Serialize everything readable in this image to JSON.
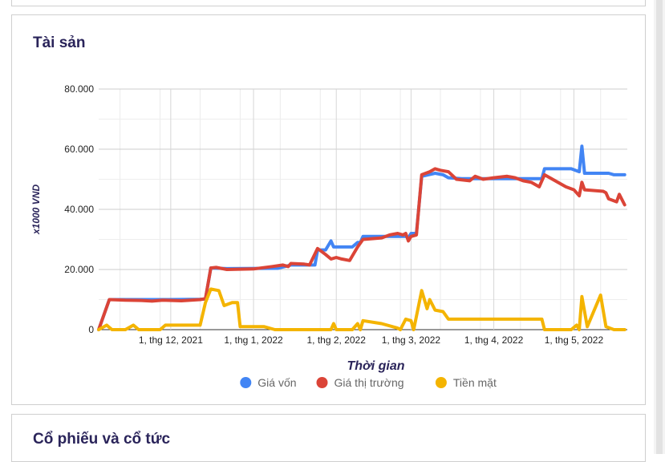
{
  "cards": {
    "assets_title": "Tài sản",
    "stocks_title": "Cổ phiếu và cổ tức"
  },
  "chart_data": {
    "type": "line",
    "title": "",
    "xlabel": "Thời gian",
    "ylabel": "x1000 VND",
    "ylim": [
      0,
      80000
    ],
    "yticks": [
      0,
      20000,
      40000,
      60000,
      80000
    ],
    "ytick_labels": [
      "0",
      "20.000",
      "40.000",
      "60.000",
      "80.000"
    ],
    "xlim": [
      "2021-11-04",
      "2022-05-21"
    ],
    "xticks": [
      "2021-12-01",
      "2022-01-01",
      "2022-02-01",
      "2022-03-01",
      "2022-04-01",
      "2022-05-01"
    ],
    "xtick_labels": [
      "1, thg 12, 2021",
      "1, thg 1, 2022",
      "1, thg 2, 2022",
      "1, thg 3, 2022",
      "1, thg 4, 2022",
      "1, thg 5, 2022"
    ],
    "grid": true,
    "legend_position": "bottom",
    "series": [
      {
        "name": "Giá vốn",
        "color": "#4285f4",
        "points": [
          [
            "2021-11-04",
            0
          ],
          [
            "2021-11-08",
            10000
          ],
          [
            "2021-11-20",
            10000
          ],
          [
            "2021-11-30",
            10000
          ],
          [
            "2021-12-12",
            10100
          ],
          [
            "2021-12-14",
            10200
          ],
          [
            "2021-12-16",
            20500
          ],
          [
            "2021-12-22",
            20300
          ],
          [
            "2022-01-10",
            20400
          ],
          [
            "2022-01-15",
            21500
          ],
          [
            "2022-01-24",
            21500
          ],
          [
            "2022-01-25",
            26500
          ],
          [
            "2022-01-28",
            26500
          ],
          [
            "2022-01-30",
            29500
          ],
          [
            "2022-01-31",
            27500
          ],
          [
            "2022-02-07",
            27500
          ],
          [
            "2022-02-09",
            29000
          ],
          [
            "2022-02-10",
            29000
          ],
          [
            "2022-02-11",
            31000
          ],
          [
            "2022-02-27",
            31000
          ],
          [
            "2022-02-28",
            30500
          ],
          [
            "2022-03-01",
            32000
          ],
          [
            "2022-03-03",
            32000
          ],
          [
            "2022-03-05",
            51000
          ],
          [
            "2022-03-10",
            52000
          ],
          [
            "2022-03-13",
            51500
          ],
          [
            "2022-03-15",
            50500
          ],
          [
            "2022-03-20",
            50200
          ],
          [
            "2022-04-05",
            50200
          ],
          [
            "2022-04-15",
            50200
          ],
          [
            "2022-04-19",
            50200
          ],
          [
            "2022-04-20",
            53500
          ],
          [
            "2022-04-30",
            53500
          ],
          [
            "2022-05-03",
            52500
          ],
          [
            "2022-05-04",
            61000
          ],
          [
            "2022-05-05",
            52000
          ],
          [
            "2022-05-14",
            52000
          ],
          [
            "2022-05-16",
            51500
          ],
          [
            "2022-05-20",
            51500
          ]
        ]
      },
      {
        "name": "Giá thị trường",
        "color": "#db4437",
        "points": [
          [
            "2021-11-04",
            0
          ],
          [
            "2021-11-08",
            10000
          ],
          [
            "2021-11-14",
            9800
          ],
          [
            "2021-11-20",
            9700
          ],
          [
            "2021-11-24",
            9500
          ],
          [
            "2021-11-28",
            9800
          ],
          [
            "2021-12-05",
            9600
          ],
          [
            "2021-12-12",
            10000
          ],
          [
            "2021-12-14",
            10300
          ],
          [
            "2021-12-16",
            20500
          ],
          [
            "2021-12-18",
            20700
          ],
          [
            "2021-12-22",
            20000
          ],
          [
            "2022-01-01",
            20200
          ],
          [
            "2022-01-08",
            21000
          ],
          [
            "2022-01-12",
            21500
          ],
          [
            "2022-01-14",
            21000
          ],
          [
            "2022-01-15",
            22000
          ],
          [
            "2022-01-20",
            21800
          ],
          [
            "2022-01-22",
            21500
          ],
          [
            "2022-01-25",
            27000
          ],
          [
            "2022-01-28",
            25000
          ],
          [
            "2022-01-30",
            23500
          ],
          [
            "2022-02-01",
            24000
          ],
          [
            "2022-02-03",
            23500
          ],
          [
            "2022-02-06",
            23000
          ],
          [
            "2022-02-09",
            27500
          ],
          [
            "2022-02-11",
            30000
          ],
          [
            "2022-02-18",
            30500
          ],
          [
            "2022-02-21",
            31500
          ],
          [
            "2022-02-24",
            32000
          ],
          [
            "2022-02-26",
            31500
          ],
          [
            "2022-02-27",
            32000
          ],
          [
            "2022-02-28",
            29500
          ],
          [
            "2022-03-01",
            31000
          ],
          [
            "2022-03-03",
            31500
          ],
          [
            "2022-03-05",
            51500
          ],
          [
            "2022-03-08",
            52500
          ],
          [
            "2022-03-10",
            53500
          ],
          [
            "2022-03-12",
            53000
          ],
          [
            "2022-03-15",
            52500
          ],
          [
            "2022-03-18",
            50000
          ],
          [
            "2022-03-23",
            49500
          ],
          [
            "2022-03-25",
            51000
          ],
          [
            "2022-03-28",
            50000
          ],
          [
            "2022-04-01",
            50500
          ],
          [
            "2022-04-04",
            50800
          ],
          [
            "2022-04-06",
            51000
          ],
          [
            "2022-04-09",
            50500
          ],
          [
            "2022-04-12",
            49500
          ],
          [
            "2022-04-15",
            49000
          ],
          [
            "2022-04-18",
            47500
          ],
          [
            "2022-04-20",
            51500
          ],
          [
            "2022-04-24",
            49500
          ],
          [
            "2022-04-28",
            47500
          ],
          [
            "2022-05-01",
            46500
          ],
          [
            "2022-05-03",
            44500
          ],
          [
            "2022-05-04",
            49000
          ],
          [
            "2022-05-05",
            46500
          ],
          [
            "2022-05-12",
            46000
          ],
          [
            "2022-05-13",
            45500
          ],
          [
            "2022-05-14",
            43500
          ],
          [
            "2022-05-17",
            42500
          ],
          [
            "2022-05-18",
            45000
          ],
          [
            "2022-05-20",
            41500
          ]
        ]
      },
      {
        "name": "Tiền mặt",
        "color": "#f4b400",
        "points": [
          [
            "2021-11-04",
            0
          ],
          [
            "2021-11-07",
            1500
          ],
          [
            "2021-11-09",
            0
          ],
          [
            "2021-11-14",
            0
          ],
          [
            "2021-11-17",
            1500
          ],
          [
            "2021-11-19",
            0
          ],
          [
            "2021-11-27",
            0
          ],
          [
            "2021-11-29",
            1500
          ],
          [
            "2021-12-12",
            1500
          ],
          [
            "2021-12-14",
            9000
          ],
          [
            "2021-12-16",
            13500
          ],
          [
            "2021-12-19",
            13000
          ],
          [
            "2021-12-21",
            8000
          ],
          [
            "2021-12-24",
            9000
          ],
          [
            "2021-12-26",
            9000
          ],
          [
            "2021-12-27",
            1000
          ],
          [
            "2022-01-05",
            1000
          ],
          [
            "2022-01-09",
            0
          ],
          [
            "2022-01-24",
            0
          ],
          [
            "2022-01-30",
            0
          ],
          [
            "2022-01-31",
            2000
          ],
          [
            "2022-02-01",
            0
          ],
          [
            "2022-02-07",
            0
          ],
          [
            "2022-02-09",
            2000
          ],
          [
            "2022-02-10",
            0
          ],
          [
            "2022-02-11",
            3000
          ],
          [
            "2022-02-18",
            2000
          ],
          [
            "2022-02-24",
            500
          ],
          [
            "2022-02-25",
            0
          ],
          [
            "2022-02-27",
            3500
          ],
          [
            "2022-03-01",
            3000
          ],
          [
            "2022-03-02",
            0
          ],
          [
            "2022-03-05",
            13000
          ],
          [
            "2022-03-07",
            7000
          ],
          [
            "2022-03-08",
            10000
          ],
          [
            "2022-03-10",
            6500
          ],
          [
            "2022-03-13",
            6000
          ],
          [
            "2022-03-15",
            3500
          ],
          [
            "2022-04-19",
            3500
          ],
          [
            "2022-04-20",
            0
          ],
          [
            "2022-04-24",
            0
          ],
          [
            "2022-04-30",
            0
          ],
          [
            "2022-05-02",
            1500
          ],
          [
            "2022-05-03",
            0
          ],
          [
            "2022-05-04",
            11000
          ],
          [
            "2022-05-06",
            1000
          ],
          [
            "2022-05-11",
            11500
          ],
          [
            "2022-05-13",
            1000
          ],
          [
            "2022-05-16",
            0
          ],
          [
            "2022-05-20",
            0
          ]
        ]
      }
    ]
  }
}
